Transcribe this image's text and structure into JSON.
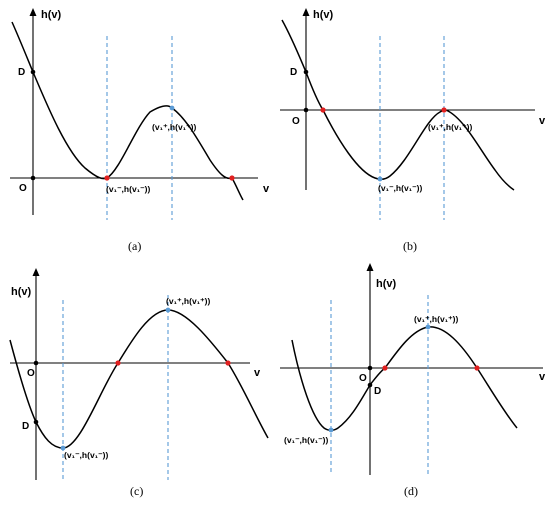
{
  "panels": [
    {
      "id": "a",
      "caption": "(a)",
      "ylabel": "h(v)",
      "xlabel": "v",
      "origin": "O",
      "d_label": "D",
      "min_label": "(v₁⁻,h(v₁⁻))",
      "max_label": "(v₁⁺,h(v₁⁺))"
    },
    {
      "id": "b",
      "caption": "(b)",
      "ylabel": "h(v)",
      "xlabel": "v",
      "origin": "O",
      "d_label": "D",
      "min_label": "(v₁⁻,h(v₁⁻))",
      "max_label": "(v₁⁺,h(v₁⁺))"
    },
    {
      "id": "c",
      "caption": "(c)",
      "ylabel": "h(v)",
      "xlabel": "v",
      "origin": "O",
      "d_label": "D",
      "min_label": "(v₁⁻,h(v₁⁻))",
      "max_label": "(v₁⁺,h(v₁⁺))"
    },
    {
      "id": "d",
      "caption": "(d)",
      "ylabel": "h(v)",
      "xlabel": "v",
      "origin": "O",
      "d_label": "D",
      "min_label": "(v₁⁻,h(v₁⁻))",
      "max_label": "(v₁⁺,h(v₁⁺))"
    }
  ]
}
